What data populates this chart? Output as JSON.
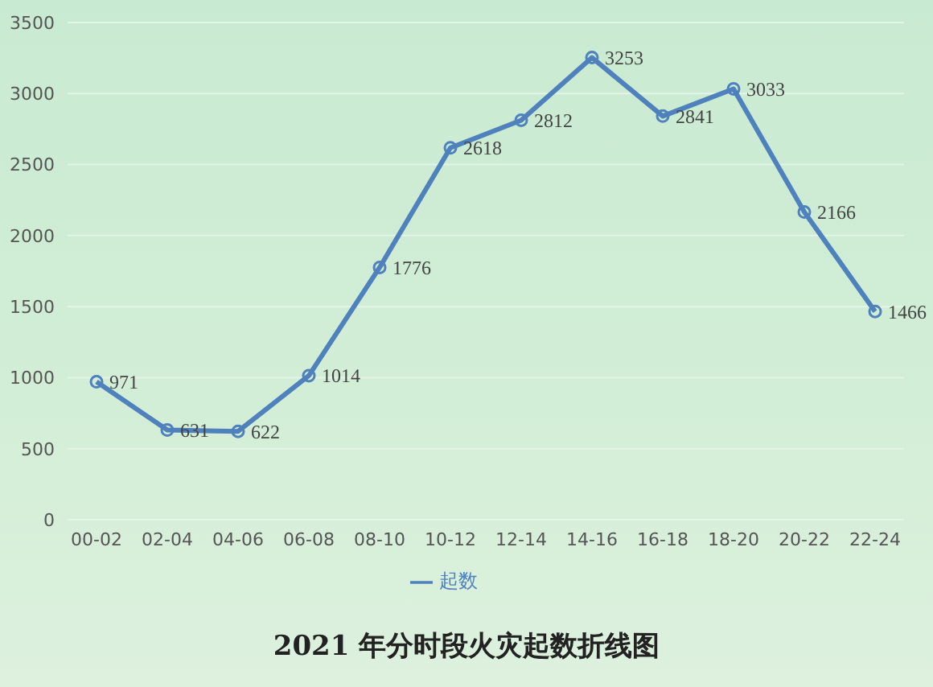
{
  "chart_data": {
    "type": "line",
    "title": "2021 年分时段火灾起数折线图",
    "categories": [
      "00-02",
      "02-04",
      "04-06",
      "06-08",
      "08-10",
      "10-12",
      "12-14",
      "14-16",
      "16-18",
      "18-20",
      "20-22",
      "22-24"
    ],
    "series": [
      {
        "name": "起数",
        "color": "#4f81bd",
        "values": [
          971,
          631,
          622,
          1014,
          1776,
          2618,
          2812,
          3253,
          2841,
          3033,
          2166,
          1466
        ]
      }
    ],
    "ylim": [
      0,
      3500
    ],
    "yticks": [
      0,
      500,
      1000,
      1500,
      2000,
      2500,
      3000,
      3500
    ],
    "grid": "y",
    "legend": "bottom",
    "marker": "circle",
    "line_style": "solid",
    "data_labels": true
  }
}
